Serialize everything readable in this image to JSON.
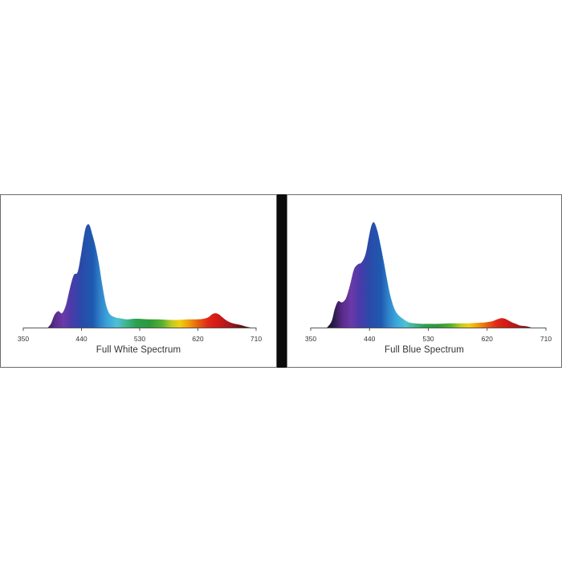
{
  "chart_data": [
    {
      "type": "area",
      "title": "Full White Spectrum",
      "xlim": [
        350,
        710
      ],
      "ylim": [
        0,
        1
      ],
      "xticks": [
        "350",
        "440",
        "530",
        "620",
        "710"
      ],
      "x": [
        388,
        393,
        398,
        404,
        410,
        416,
        422,
        428,
        434,
        439,
        443,
        447,
        452,
        457,
        462,
        467,
        472,
        478,
        484,
        492,
        500,
        510,
        520,
        530,
        545,
        560,
        575,
        590,
        605,
        618,
        628,
        636,
        642,
        647,
        652,
        658,
        664,
        670,
        678,
        686,
        694,
        702
      ],
      "y": [
        0.0,
        0.04,
        0.12,
        0.16,
        0.14,
        0.22,
        0.38,
        0.51,
        0.54,
        0.7,
        0.86,
        0.98,
        1.0,
        0.9,
        0.78,
        0.62,
        0.42,
        0.22,
        0.13,
        0.1,
        0.09,
        0.08,
        0.085,
        0.085,
        0.08,
        0.08,
        0.075,
        0.075,
        0.08,
        0.08,
        0.085,
        0.1,
        0.13,
        0.14,
        0.13,
        0.1,
        0.07,
        0.05,
        0.035,
        0.025,
        0.01,
        0.0
      ]
    },
    {
      "type": "area",
      "title": "Full Blue Spectrum",
      "xlim": [
        350,
        710
      ],
      "ylim": [
        0,
        1
      ],
      "xticks": [
        "350",
        "440",
        "530",
        "620",
        "710"
      ],
      "x": [
        375,
        382,
        387,
        392,
        398,
        404,
        410,
        416,
        422,
        428,
        434,
        439,
        443,
        447,
        452,
        457,
        462,
        467,
        472,
        478,
        484,
        492,
        500,
        510,
        520,
        530,
        545,
        560,
        575,
        590,
        605,
        618,
        628,
        636,
        642,
        647,
        652,
        658,
        664,
        670,
        676,
        682,
        688
      ],
      "y": [
        0.0,
        0.06,
        0.18,
        0.25,
        0.24,
        0.28,
        0.4,
        0.55,
        0.6,
        0.62,
        0.7,
        0.86,
        0.97,
        1.0,
        0.92,
        0.78,
        0.62,
        0.45,
        0.3,
        0.18,
        0.12,
        0.08,
        0.05,
        0.04,
        0.035,
        0.035,
        0.035,
        0.04,
        0.04,
        0.04,
        0.045,
        0.05,
        0.06,
        0.08,
        0.09,
        0.085,
        0.07,
        0.05,
        0.035,
        0.02,
        0.015,
        0.01,
        0.0
      ]
    }
  ]
}
